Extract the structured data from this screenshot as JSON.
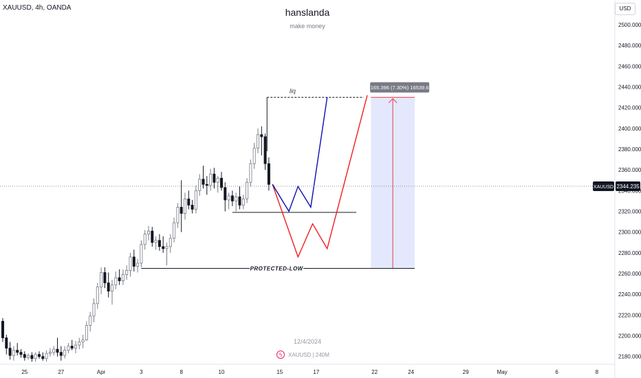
{
  "header": {
    "symbol_line": "XAUUSD, 4h, OANDA",
    "author": "hanslanda",
    "subtitle": "make money",
    "currency": "USD"
  },
  "watermark": {
    "date": "12/4/2024",
    "symbol": "XAUUSD | 240M",
    "logo_icon": "tradingview-logo-icon"
  },
  "price_label": {
    "symbol": "XAUUSD",
    "value": "2344.235",
    "price": 2344.235
  },
  "measure_label": "165.396 (7.30%) 16539.6",
  "annotations": {
    "liquidity": "liq",
    "protected_low": "PROTECTED-LOW"
  },
  "colors": {
    "up": "#787b86",
    "down": "#131722",
    "blue_path": "#0a0eb0",
    "red_path": "#f01c1c",
    "measure_fill": "#e0e5fc",
    "measure_line": "#f23645"
  },
  "chart_data": {
    "type": "candlestick",
    "title": "",
    "xlabel": "",
    "ylabel": "",
    "ylim": [
      2170,
      2510
    ],
    "y_ticks": [
      "2180.000",
      "2200.000",
      "2220.000",
      "2240.000",
      "2260.000",
      "2280.000",
      "2300.000",
      "2320.000",
      "2340.000",
      "2360.000",
      "2380.000",
      "2400.000",
      "2420.000",
      "2440.000",
      "2460.000",
      "2480.000",
      "2500.000"
    ],
    "y_tick_values": [
      2180,
      2200,
      2220,
      2240,
      2260,
      2280,
      2300,
      2320,
      2340,
      2360,
      2380,
      2400,
      2420,
      2440,
      2460,
      2480,
      2500
    ],
    "x_ticks": [
      "25",
      "27",
      "Apr",
      "3",
      "8",
      "10",
      "15",
      "17",
      "22",
      "24",
      "29",
      "May",
      "6",
      "8"
    ],
    "x_tick_bars": [
      6,
      16,
      27,
      38,
      49,
      60,
      76,
      86,
      102,
      112,
      127,
      137,
      152,
      163
    ],
    "candles": [
      [
        2214,
        2217,
        2194,
        2198
      ],
      [
        2198,
        2201,
        2182,
        2188
      ],
      [
        2188,
        2194,
        2177,
        2181
      ],
      [
        2181,
        2190,
        2176,
        2186
      ],
      [
        2186,
        2193,
        2181,
        2184
      ],
      [
        2184,
        2187,
        2179,
        2182
      ],
      [
        2182,
        2185,
        2176,
        2179
      ],
      [
        2179,
        2183,
        2177,
        2181
      ],
      [
        2181,
        2184,
        2175,
        2178
      ],
      [
        2178,
        2184,
        2175,
        2182
      ],
      [
        2182,
        2185,
        2178,
        2180
      ],
      [
        2180,
        2184,
        2176,
        2178
      ],
      [
        2178,
        2186,
        2175,
        2183
      ],
      [
        2183,
        2188,
        2180,
        2184
      ],
      [
        2184,
        2190,
        2181,
        2187
      ],
      [
        2187,
        2198,
        2180,
        2184
      ],
      [
        2184,
        2190,
        2176,
        2181
      ],
      [
        2181,
        2190,
        2178,
        2186
      ],
      [
        2186,
        2193,
        2183,
        2190
      ],
      [
        2190,
        2196,
        2186,
        2188
      ],
      [
        2188,
        2195,
        2183,
        2191
      ],
      [
        2191,
        2198,
        2187,
        2194
      ],
      [
        2194,
        2201,
        2188,
        2196
      ],
      [
        2196,
        2214,
        2195,
        2210
      ],
      [
        2210,
        2223,
        2204,
        2219
      ],
      [
        2219,
        2236,
        2213,
        2231
      ],
      [
        2231,
        2251,
        2226,
        2247
      ],
      [
        2247,
        2266,
        2240,
        2261
      ],
      [
        2261,
        2266,
        2246,
        2251
      ],
      [
        2251,
        2261,
        2237,
        2243
      ],
      [
        2243,
        2254,
        2230,
        2249
      ],
      [
        2249,
        2262,
        2245,
        2256
      ],
      [
        2256,
        2264,
        2249,
        2253
      ],
      [
        2253,
        2264,
        2249,
        2259
      ],
      [
        2259,
        2268,
        2254,
        2263
      ],
      [
        2263,
        2280,
        2257,
        2276
      ],
      [
        2276,
        2283,
        2262,
        2267
      ],
      [
        2267,
        2274,
        2261,
        2270
      ],
      [
        2270,
        2292,
        2266,
        2288
      ],
      [
        2288,
        2302,
        2283,
        2298
      ],
      [
        2298,
        2306,
        2292,
        2301
      ],
      [
        2301,
        2305,
        2286,
        2290
      ],
      [
        2290,
        2296,
        2283,
        2292
      ],
      [
        2292,
        2298,
        2282,
        2286
      ],
      [
        2286,
        2296,
        2280,
        2284
      ],
      [
        2284,
        2290,
        2268,
        2286
      ],
      [
        2286,
        2298,
        2280,
        2294
      ],
      [
        2294,
        2314,
        2290,
        2309
      ],
      [
        2309,
        2328,
        2304,
        2324
      ],
      [
        2324,
        2350,
        2300,
        2318
      ],
      [
        2318,
        2338,
        2312,
        2332
      ],
      [
        2332,
        2340,
        2322,
        2326
      ],
      [
        2326,
        2331,
        2318,
        2322
      ],
      [
        2322,
        2345,
        2318,
        2340
      ],
      [
        2340,
        2356,
        2335,
        2351
      ],
      [
        2351,
        2364,
        2342,
        2346
      ],
      [
        2346,
        2354,
        2336,
        2345
      ],
      [
        2345,
        2361,
        2340,
        2356
      ],
      [
        2356,
        2362,
        2342,
        2348
      ],
      [
        2348,
        2354,
        2338,
        2352
      ],
      [
        2352,
        2358,
        2340,
        2343
      ],
      [
        2343,
        2348,
        2320,
        2331
      ],
      [
        2331,
        2338,
        2322,
        2335
      ],
      [
        2335,
        2340,
        2325,
        2330
      ],
      [
        2330,
        2338,
        2320,
        2334
      ],
      [
        2334,
        2344,
        2322,
        2326
      ],
      [
        2326,
        2336,
        2322,
        2332
      ],
      [
        2332,
        2352,
        2328,
        2348
      ],
      [
        2348,
        2370,
        2344,
        2366
      ],
      [
        2366,
        2386,
        2361,
        2381
      ],
      [
        2381,
        2400,
        2376,
        2394
      ],
      [
        2394,
        2402,
        2374,
        2392
      ],
      [
        2392,
        2395,
        2360,
        2366
      ],
      [
        2366,
        2372,
        2340,
        2346
      ]
    ],
    "drawings": {
      "liq_line": {
        "from": [
          72.5,
          2430
        ],
        "to": [
          99,
          2430
        ]
      },
      "liq_stem": {
        "x": 72.5,
        "from": 2430,
        "to": 2378
      },
      "blue_path": {
        "bars": [
          74,
          78.5,
          81,
          84.5,
          89
        ],
        "prices": [
          2346,
          2320,
          2344,
          2324,
          2430
        ]
      },
      "red_path": {
        "bars": [
          74,
          81,
          85,
          89,
          100
        ],
        "prices": [
          2346,
          2276,
          2308,
          2284,
          2432
        ]
      },
      "support_line": {
        "from": [
          63,
          2319
        ],
        "to": [
          97,
          2319
        ]
      },
      "protected_low_line": {
        "from": [
          38,
          2265
        ],
        "to": [
          113,
          2265
        ]
      },
      "measure_box": {
        "from": [
          101,
          2430
        ],
        "to": [
          113,
          2265
        ]
      }
    }
  }
}
